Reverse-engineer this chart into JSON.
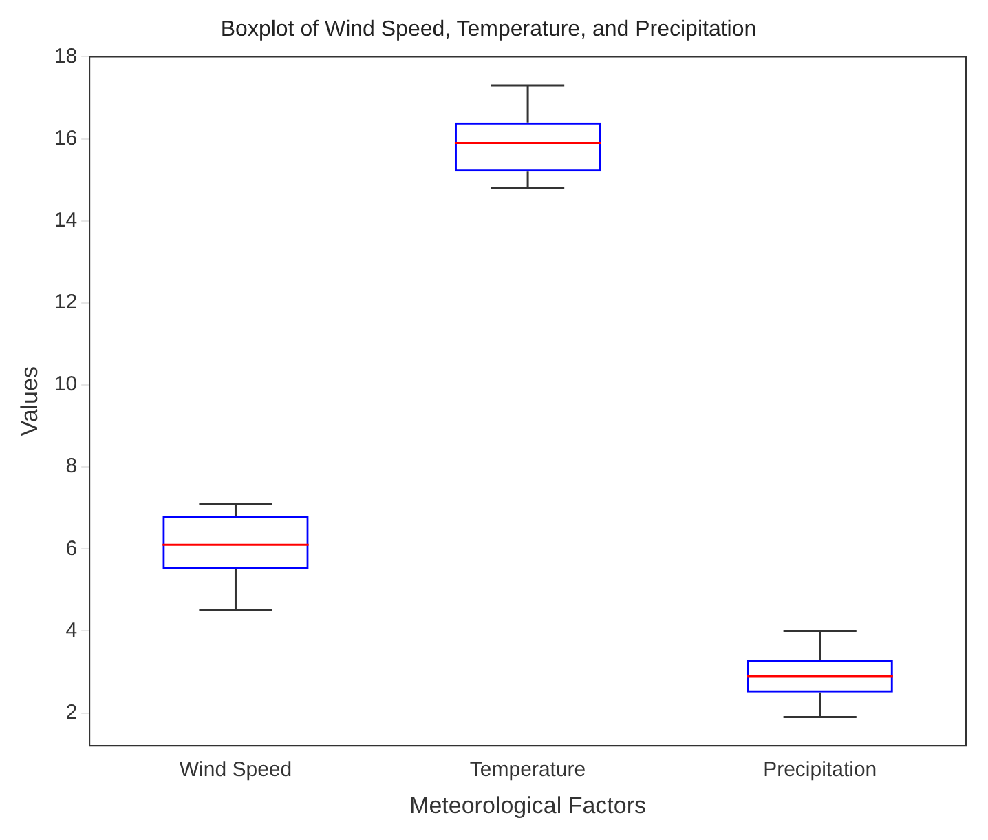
{
  "chart_data": {
    "type": "box",
    "title": "Boxplot of Wind Speed, Temperature, and Precipitation",
    "xlabel": "Meteorological Factors",
    "ylabel": "Values",
    "categories": [
      "Wind Speed",
      "Temperature",
      "Precipitation"
    ],
    "series": [
      {
        "color": "#0000ff",
        "boxes": [
          {
            "low": 4.5,
            "q1": 5.5,
            "median": 6.1,
            "q3": 6.8,
            "high": 7.1
          },
          {
            "low": 14.8,
            "q1": 15.2,
            "median": 15.9,
            "q3": 16.4,
            "high": 17.3
          },
          {
            "low": 1.9,
            "q1": 2.5,
            "median": 2.9,
            "q3": 3.3,
            "high": 4.0
          }
        ]
      }
    ],
    "ylim": [
      1.2,
      18
    ],
    "yticks": [
      2,
      4,
      6,
      8,
      10,
      12,
      14,
      16,
      18
    ],
    "grid": false,
    "legend": false
  }
}
